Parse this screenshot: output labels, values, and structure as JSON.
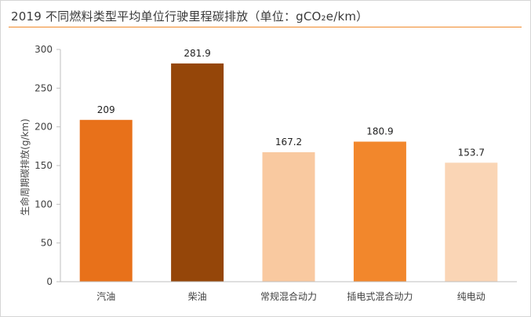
{
  "title": "2019 不同燃料类型平均单位行驶里程碳排放（单位：gCO₂e/km）",
  "chart_data": {
    "type": "bar",
    "title": "2019 不同燃料类型平均单位行驶里程碳排放（单位：gCO₂e/km）",
    "ylabel": "生命周期碳排放(g/km)",
    "xlabel": "",
    "categories": [
      "汽油",
      "柴油",
      "常规混合动力",
      "插电式混合动力",
      "纯电动"
    ],
    "values": [
      209,
      281.9,
      167.2,
      180.9,
      153.7
    ],
    "value_labels": [
      "209",
      "281.9",
      "167.2",
      "180.9",
      "153.7"
    ],
    "bar_colors": [
      "#e8711a",
      "#954609",
      "#f9c9a0",
      "#f2872c",
      "#fad5b5"
    ],
    "ylim": [
      0,
      300
    ],
    "yticks": [
      0,
      50,
      100,
      150,
      200,
      250,
      300
    ],
    "grid": false,
    "legend": "none",
    "axis_color": "#bfbfbf",
    "tick_label_color": "#404040",
    "data_label_color": "#222222"
  }
}
